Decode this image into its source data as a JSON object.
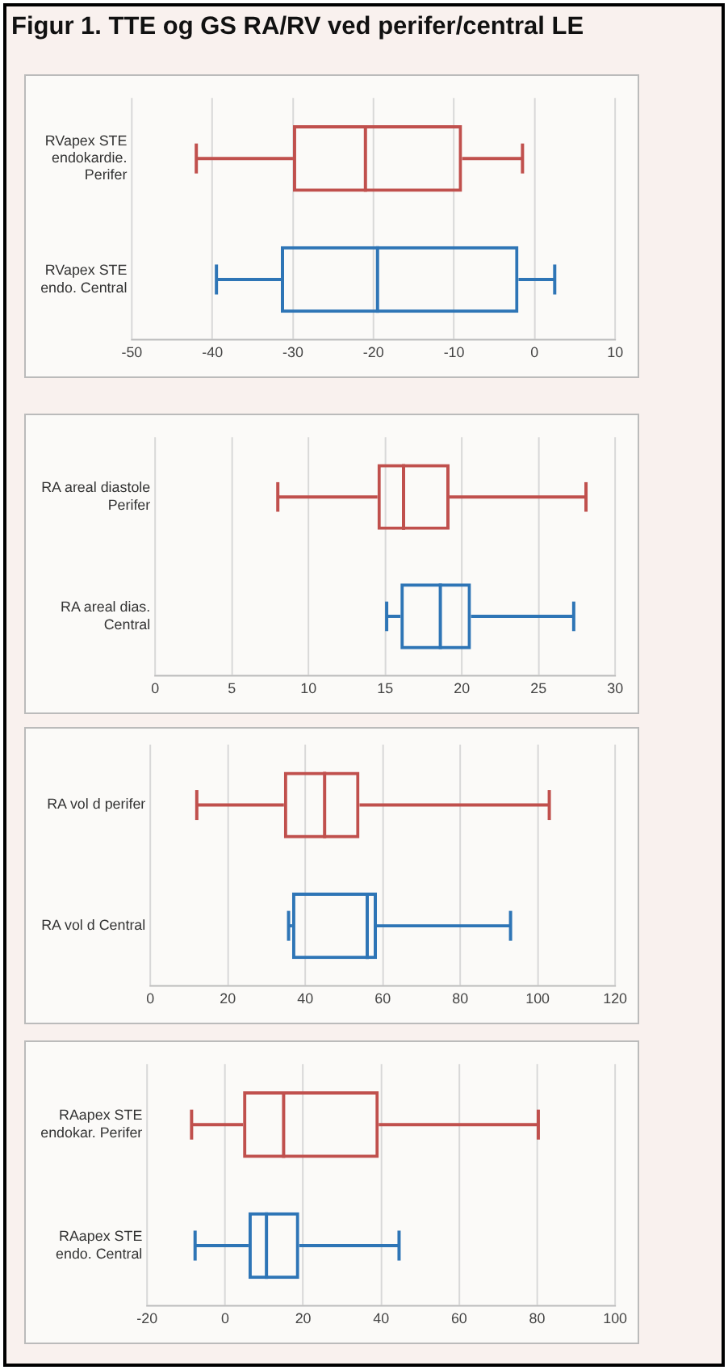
{
  "chart_data": [
    {
      "type": "box",
      "title": "Figur 1. TTE og GS RA/RV ved perifer/central LE",
      "orientation": "horizontal",
      "categories": [
        "RVapex STE endokardie. Perifer",
        "RVapex STE endo. Central"
      ],
      "colors": [
        "#c0504d",
        "#2e75b6"
      ],
      "boxes": [
        {
          "low": -42,
          "q1": -30,
          "median": -21,
          "q3": -9,
          "high": -1.5
        },
        {
          "low": -39.5,
          "q1": -31.5,
          "median": -19.5,
          "q3": -2,
          "high": 2.5
        }
      ],
      "xlim": [
        -50,
        10
      ],
      "xticks": [
        -50,
        -40,
        -30,
        -20,
        -10,
        0,
        10
      ],
      "grid": "x"
    },
    {
      "type": "box",
      "orientation": "horizontal",
      "categories": [
        "RA areal diastole Perifer",
        "RA areal dias. Central"
      ],
      "colors": [
        "#c0504d",
        "#2e75b6"
      ],
      "boxes": [
        {
          "low": 8,
          "q1": 14.5,
          "median": 16.2,
          "q3": 19.2,
          "high": 28.1
        },
        {
          "low": 15.1,
          "q1": 16,
          "median": 18.6,
          "q3": 20.6,
          "high": 27.3
        }
      ],
      "xlim": [
        0,
        30
      ],
      "xticks": [
        0,
        5,
        10,
        15,
        20,
        25,
        30
      ],
      "grid": "x"
    },
    {
      "type": "box",
      "orientation": "horizontal",
      "categories": [
        "RA vol d perifer",
        "RA vol d Central"
      ],
      "colors": [
        "#c0504d",
        "#2e75b6"
      ],
      "boxes": [
        {
          "low": 12,
          "q1": 34.5,
          "median": 45,
          "q3": 54,
          "high": 103
        },
        {
          "low": 35.7,
          "q1": 36.6,
          "median": 56,
          "q3": 58.5,
          "high": 93
        }
      ],
      "xlim": [
        0,
        120
      ],
      "xticks": [
        0,
        20,
        40,
        60,
        80,
        100,
        120
      ],
      "grid": "x"
    },
    {
      "type": "box",
      "orientation": "horizontal",
      "categories": [
        "RAapex STE endokar. Perifer",
        "RAapex STE endo. Central"
      ],
      "colors": [
        "#c0504d",
        "#2e75b6"
      ],
      "boxes": [
        {
          "low": -8.6,
          "q1": 4.6,
          "median": 15,
          "q3": 39.4,
          "high": 80.3
        },
        {
          "low": -7.7,
          "q1": 6,
          "median": 10.6,
          "q3": 19,
          "high": 44.6
        }
      ],
      "xlim": [
        -20,
        100
      ],
      "xticks": [
        -20,
        0,
        20,
        40,
        60,
        80,
        100
      ],
      "grid": "x"
    }
  ]
}
